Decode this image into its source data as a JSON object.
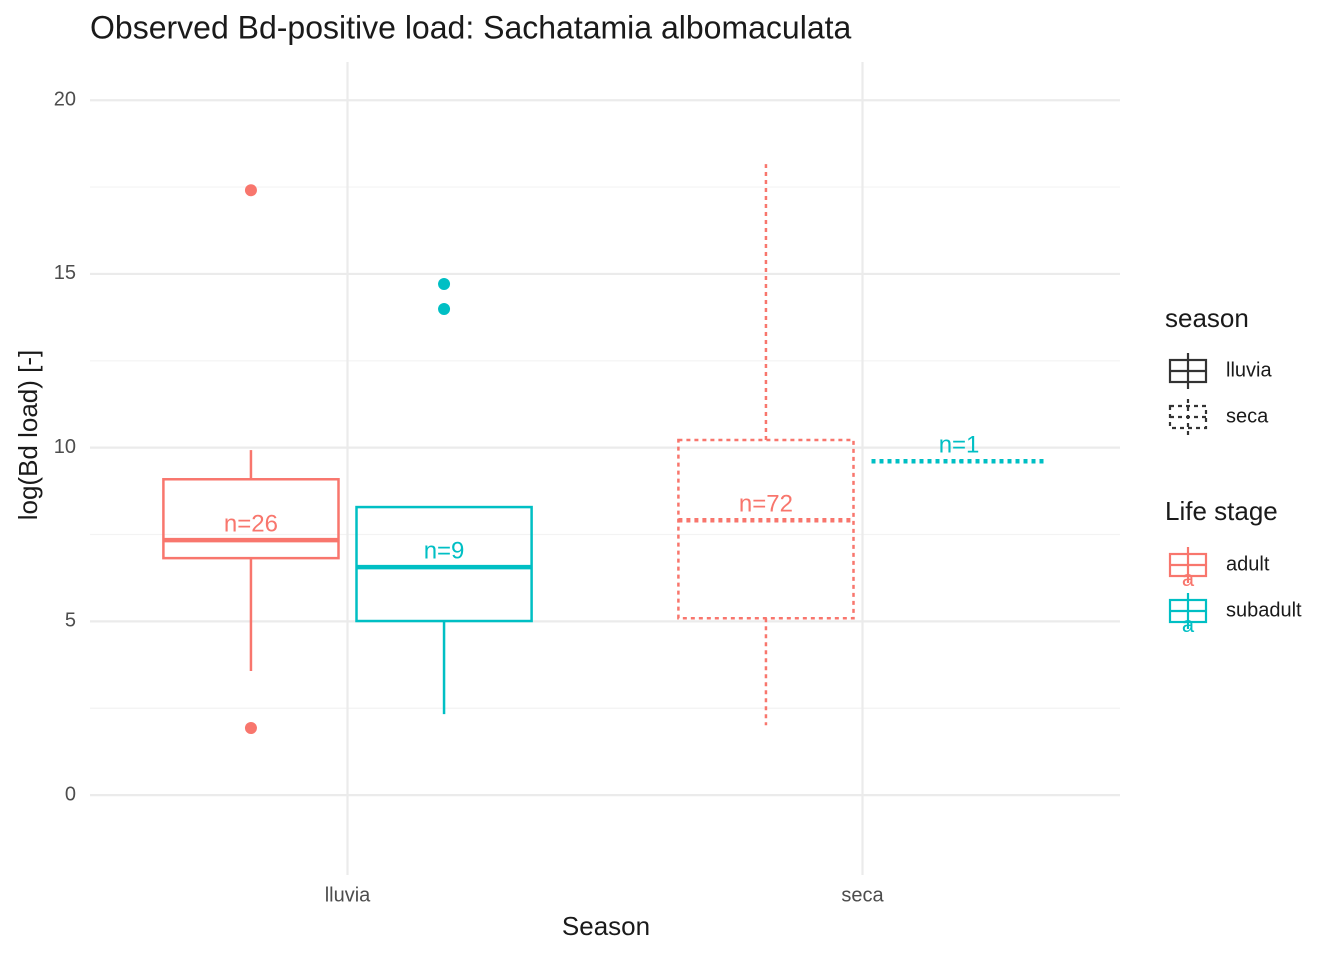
{
  "chart_data": {
    "type": "boxplot",
    "title": "Observed Bd-positive load: Sachatamia albomaculata",
    "x_label": "Season",
    "y_label": "log(Bd load) [-]",
    "categories": [
      "lluvia",
      "seca"
    ],
    "linetypes": [
      "solid",
      "dashed"
    ],
    "ylim": [
      -2.3,
      21.1
    ],
    "yticks": [
      0,
      5,
      10,
      15,
      20
    ],
    "grid": true,
    "minor_grid": true,
    "legend_position": "right",
    "legend_titles": {
      "linetype": "season",
      "color": "Life stage"
    },
    "color_key_label": "a",
    "series": [
      {
        "name": "adult",
        "color": "#F8766D",
        "boxes": [
          {
            "min": 3.57,
            "q1": 6.82,
            "median": 7.34,
            "q3": 9.09,
            "max": 9.93,
            "outliers": [
              17.41,
              1.93
            ],
            "label": "n=26"
          },
          {
            "min": 2.01,
            "q1": 5.09,
            "median": 7.91,
            "q3": 10.22,
            "max": 18.16,
            "outliers": [],
            "label": "n=72"
          }
        ]
      },
      {
        "name": "subadult",
        "color": "#00BFC4",
        "boxes": [
          {
            "min": 2.33,
            "q1": 5.01,
            "median": 6.56,
            "q3": 8.29,
            "max": 8.29,
            "outliers": [
              14.71,
              13.99
            ],
            "label": "n=9"
          },
          {
            "min": 9.61,
            "q1": 9.61,
            "median": 9.61,
            "q3": 9.61,
            "max": 9.61,
            "outliers": [],
            "label": "n=1"
          }
        ]
      }
    ]
  }
}
